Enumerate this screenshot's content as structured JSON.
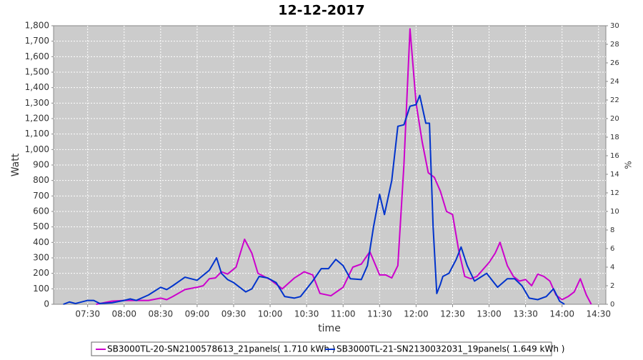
{
  "chart_data": {
    "type": "line",
    "title": "12-12-2017",
    "x_label": "time",
    "y_label": "Watt",
    "y2_label": "%",
    "xlim": [
      "07:02",
      "14:36"
    ],
    "xticks": [
      "07:30",
      "08:00",
      "08:30",
      "09:00",
      "09:30",
      "10:00",
      "10:30",
      "11:00",
      "11:30",
      "12:00",
      "12:30",
      "13:00",
      "13:30",
      "14:00",
      "14:30"
    ],
    "ylim": [
      0,
      1800
    ],
    "yticks": [
      0,
      100,
      200,
      300,
      400,
      500,
      600,
      700,
      800,
      900,
      {
        "value": 1000,
        "label": "1,000"
      },
      {
        "value": 1100,
        "label": "1,100"
      },
      {
        "value": 1200,
        "label": "1,200"
      },
      {
        "value": 1300,
        "label": "1,300"
      },
      {
        "value": 1400,
        "label": "1,400"
      },
      {
        "value": 1500,
        "label": "1,500"
      },
      {
        "value": 1600,
        "label": "1,600"
      },
      {
        "value": 1700,
        "label": "1,700"
      },
      {
        "value": 1800,
        "label": "1,800"
      }
    ],
    "y2lim": [
      0,
      30
    ],
    "y2ticks": [
      0,
      2,
      4,
      6,
      8,
      10,
      12,
      14,
      16,
      18,
      20,
      22,
      24,
      26,
      28,
      30
    ],
    "grid": true,
    "series": [
      {
        "name": "SB3000TL-20-SN2100578613_21panels( 1.710 kWh )",
        "color": "#cc00cc",
        "x": [
          "07:37",
          "07:50",
          "08:00",
          "08:10",
          "08:20",
          "08:30",
          "08:35",
          "08:40",
          "08:50",
          "09:00",
          "09:05",
          "09:10",
          "09:15",
          "09:20",
          "09:25",
          "09:32",
          "09:39",
          "09:45",
          "09:50",
          "10:00",
          "10:10",
          "10:20",
          "10:28",
          "10:35",
          "10:41",
          "10:50",
          "11:00",
          "11:08",
          "11:15",
          "11:22",
          "11:30",
          "11:35",
          "11:40",
          "11:45",
          "11:50",
          "11:55",
          "12:00",
          "12:05",
          "12:10",
          "12:15",
          "12:20",
          "12:25",
          "12:30",
          "12:35",
          "12:40",
          "12:45",
          "12:50",
          "13:00",
          "13:05",
          "13:09",
          "13:15",
          "13:20",
          "13:25",
          "13:30",
          "13:35",
          "13:40",
          "13:45",
          "13:50",
          "13:55",
          "14:00",
          "14:05",
          "14:10",
          "14:15",
          "14:20",
          "14:24"
        ],
        "values": [
          0,
          20,
          25,
          25,
          25,
          40,
          30,
          50,
          95,
          110,
          120,
          165,
          170,
          210,
          195,
          240,
          420,
          330,
          200,
          160,
          100,
          170,
          210,
          190,
          70,
          55,
          110,
          240,
          260,
          340,
          190,
          190,
          170,
          250,
          900,
          1780,
          1300,
          1050,
          850,
          820,
          730,
          600,
          580,
          350,
          180,
          165,
          180,
          270,
          330,
          400,
          250,
          180,
          150,
          160,
          120,
          195,
          180,
          150,
          60,
          30,
          50,
          80,
          165,
          60,
          0
        ]
      },
      {
        "name": "SB3000TL-21-SN2130032031_19panels( 1.649 kWh )",
        "color": "#0033cc",
        "x": [
          "07:10",
          "07:15",
          "07:20",
          "07:30",
          "07:35",
          "07:40",
          "07:50",
          "08:00",
          "08:05",
          "08:10",
          "08:20",
          "08:30",
          "08:35",
          "08:40",
          "08:50",
          "09:00",
          "09:10",
          "09:16",
          "09:20",
          "09:25",
          "09:30",
          "09:40",
          "09:45",
          "09:51",
          "09:58",
          "10:05",
          "10:12",
          "10:20",
          "10:25",
          "10:30",
          "10:35",
          "10:42",
          "10:48",
          "10:54",
          "11:00",
          "11:06",
          "11:15",
          "11:20",
          "11:25",
          "11:30",
          "11:34",
          "11:40",
          "11:45",
          "11:50",
          "11:55",
          "12:00",
          "12:03",
          "12:08",
          "12:11",
          "12:14",
          "12:17",
          "12:20",
          "12:22",
          "12:27",
          "12:33",
          "12:37",
          "12:42",
          "12:48",
          "12:58",
          "13:07",
          "13:15",
          "13:21",
          "13:27",
          "13:33",
          "13:40",
          "13:47",
          "13:53",
          "13:58",
          "14:02"
        ],
        "values": [
          0,
          15,
          5,
          25,
          25,
          5,
          10,
          25,
          35,
          25,
          60,
          110,
          95,
          120,
          175,
          155,
          220,
          300,
          200,
          160,
          140,
          80,
          100,
          180,
          170,
          140,
          50,
          40,
          50,
          100,
          150,
          230,
          230,
          290,
          250,
          165,
          160,
          250,
          500,
          710,
          580,
          800,
          1150,
          1160,
          1280,
          1290,
          1350,
          1170,
          1170,
          500,
          70,
          130,
          180,
          200,
          290,
          370,
          250,
          150,
          200,
          110,
          165,
          165,
          120,
          40,
          30,
          50,
          100,
          20,
          0
        ]
      }
    ]
  }
}
